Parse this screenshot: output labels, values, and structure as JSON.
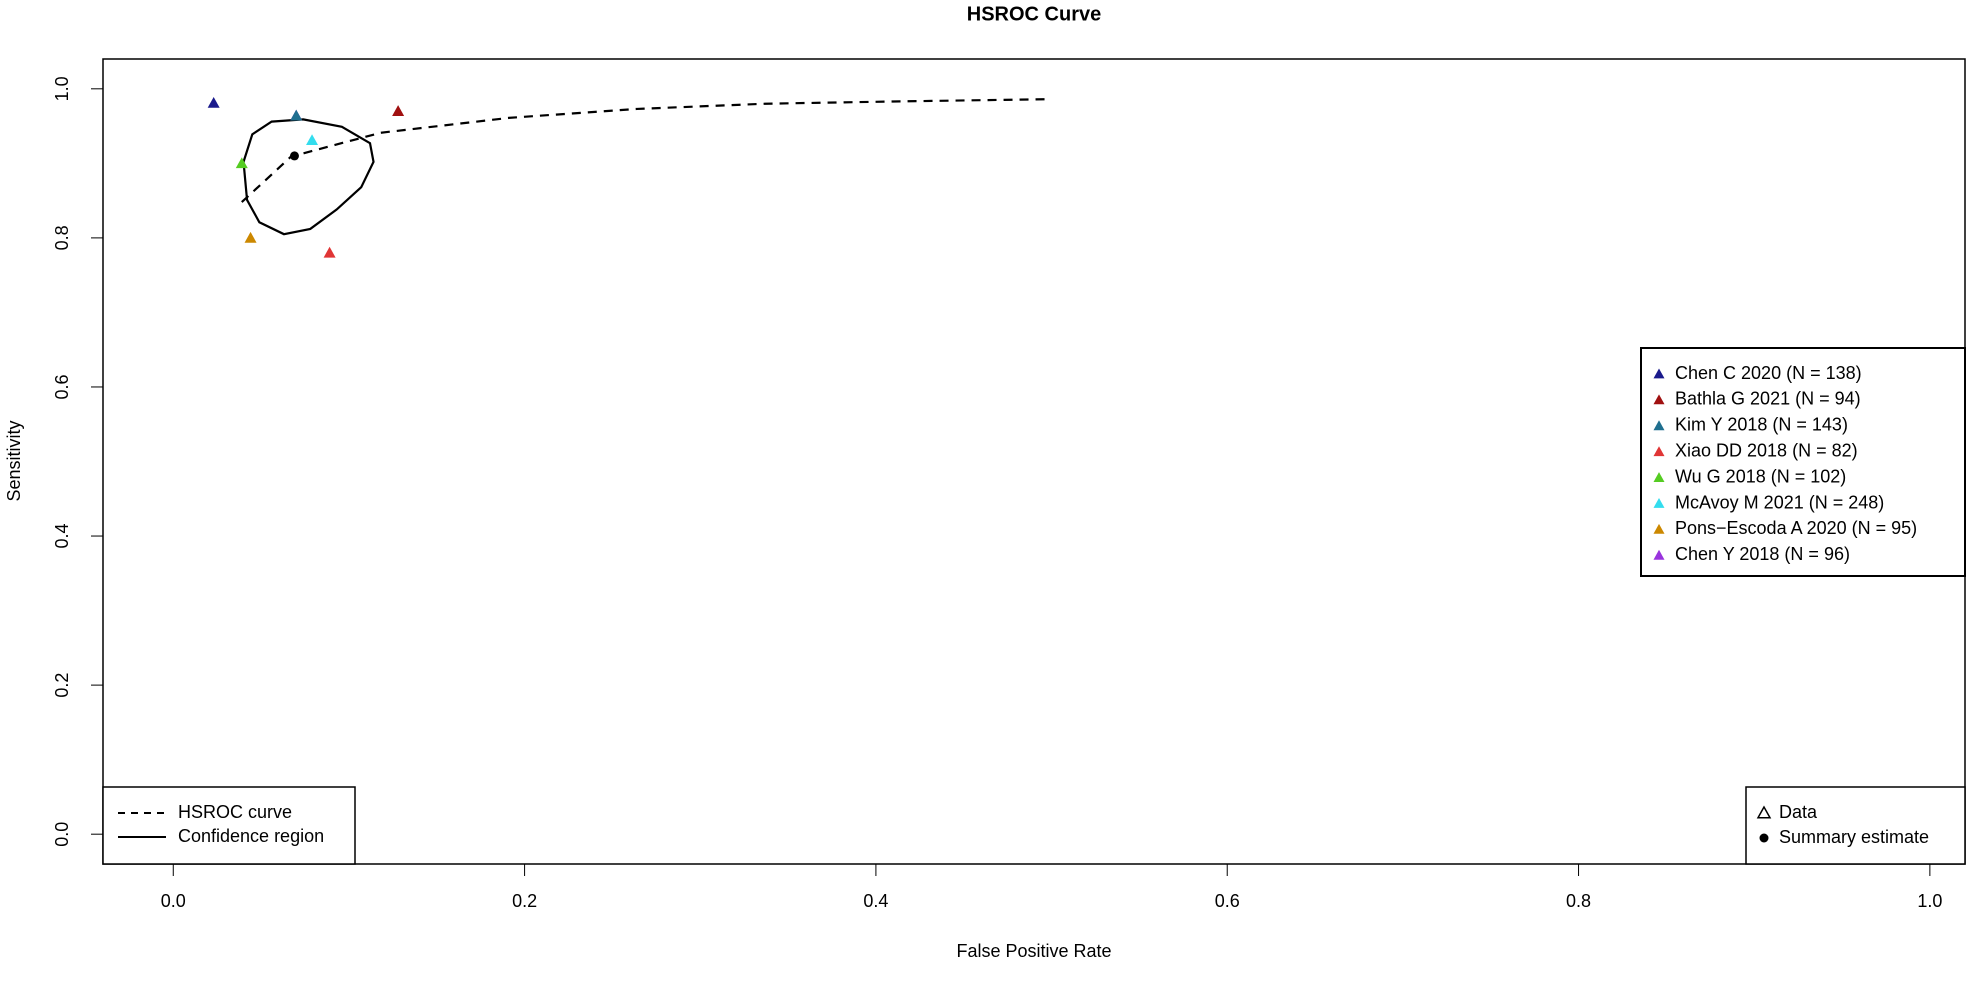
{
  "chart_data": {
    "type": "scatter",
    "title": "HSROC Curve",
    "x_label": "False Positive Rate",
    "y_label": "Sensitivity",
    "xlim": [
      -0.04,
      1.02
    ],
    "ylim": [
      -0.04,
      1.04
    ],
    "xticks": [
      {
        "value": 0,
        "label": "0.0"
      },
      {
        "value": 0.2,
        "label": "0.2"
      },
      {
        "value": 0.4,
        "label": "0.4"
      },
      {
        "value": 0.6,
        "label": "0.6"
      },
      {
        "value": 0.8,
        "label": "0.8"
      },
      {
        "value": 1,
        "label": "1.0"
      }
    ],
    "yticks": [
      {
        "value": 0,
        "label": "0.0"
      },
      {
        "value": 0.2,
        "label": "0.2"
      },
      {
        "value": 0.4,
        "label": "0.4"
      },
      {
        "value": 0.6,
        "label": "0.6"
      },
      {
        "value": 0.8,
        "label": "0.8"
      },
      {
        "value": 1,
        "label": "1.0"
      }
    ],
    "series": [
      {
        "name": "Chen C 2020 (N = 138)",
        "color": "#1a1a8c",
        "x": [
          0.023
        ],
        "values": [
          0.981
        ]
      },
      {
        "name": "Bathla G 2021 (N = 94)",
        "color": "#a01010",
        "x": [
          0.128
        ],
        "values": [
          0.97
        ]
      },
      {
        "name": "Kim Y 2018 (N = 143)",
        "color": "#1f6f8f",
        "x": [
          0.07
        ],
        "values": [
          0.964
        ]
      },
      {
        "name": "Xiao DD 2018 (N = 82)",
        "color": "#e03535",
        "x": [
          0.089
        ],
        "values": [
          0.78
        ]
      },
      {
        "name": "Wu G 2018 (N = 102)",
        "color": "#55cc22",
        "x": [
          0.039
        ],
        "values": [
          0.9
        ]
      },
      {
        "name": "McAvoy M 2021 (N = 248)",
        "color": "#33ddee",
        "x": [
          0.079
        ],
        "values": [
          0.931
        ]
      },
      {
        "name": "Pons−Escoda A 2020 (N = 95)",
        "color": "#cc8800",
        "x": [
          0.044
        ],
        "values": [
          0.8
        ]
      },
      {
        "name": "Chen Y 2018 (N = 96)",
        "color": "#9933dd",
        "x": [
          0.07
        ],
        "values": [
          0.964
        ]
      }
    ],
    "hsroc_curve": {
      "name": "HSROC curve",
      "color": "#000000",
      "x": [
        0.039,
        0.067,
        0.118,
        0.191,
        0.264,
        0.337,
        0.41,
        0.496
      ],
      "values": [
        0.848,
        0.909,
        0.941,
        0.961,
        0.973,
        0.98,
        0.983,
        0.986
      ]
    },
    "confidence_region": {
      "name": "Confidence region",
      "color": "#000000",
      "x": [
        0.04,
        0.045,
        0.056,
        0.074,
        0.096,
        0.112,
        0.114,
        0.107,
        0.093,
        0.078,
        0.063,
        0.049,
        0.042
      ],
      "values": [
        0.902,
        0.939,
        0.956,
        0.959,
        0.949,
        0.927,
        0.902,
        0.868,
        0.838,
        0.812,
        0.805,
        0.821,
        0.851
      ]
    },
    "summary_estimate": {
      "name": "Summary estimate",
      "color": "#000000",
      "x": 0.069,
      "value": 0.91
    },
    "data_legend_label": "Data"
  }
}
